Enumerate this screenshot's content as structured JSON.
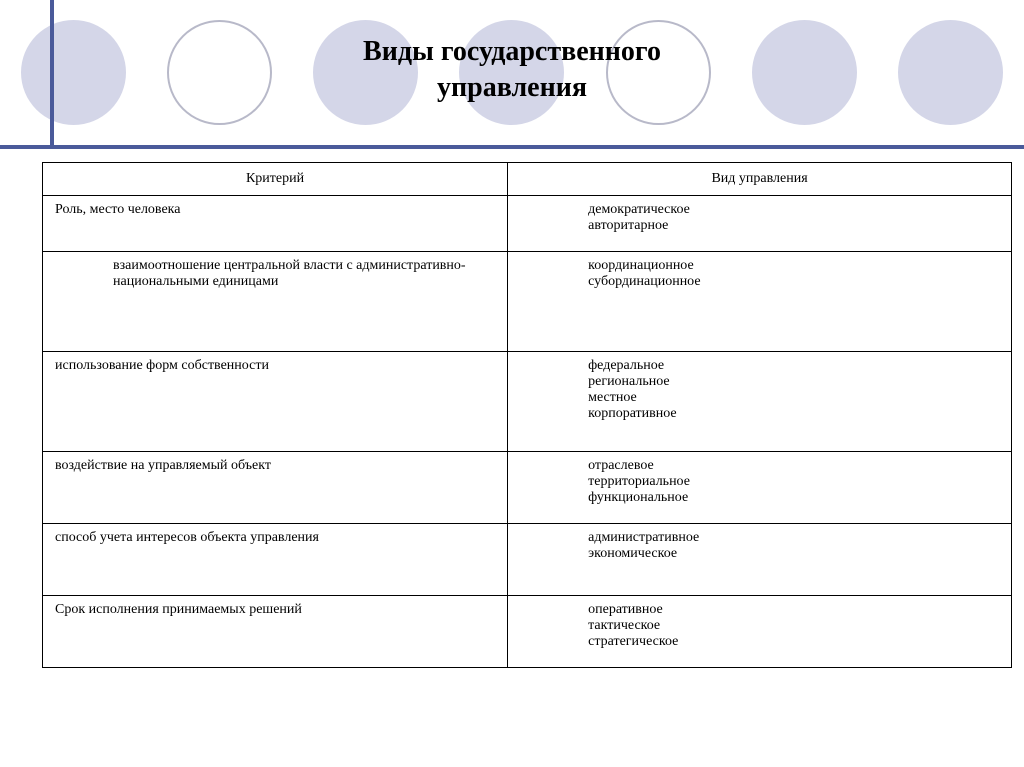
{
  "title_line1": "Виды государственного",
  "title_line2": "управления",
  "columns": {
    "col1": "Критерий",
    "col2": "Вид управления"
  },
  "rows": [
    {
      "criterion": "Роль, место человека",
      "types": [
        "демократическое",
        "авторитарное"
      ],
      "indented": false
    },
    {
      "criterion": "взаимоотношение центральной власти с административно-национальными единицами",
      "types": [
        "координационное",
        "субординационное"
      ],
      "indented": true
    },
    {
      "criterion": "использование форм собственности",
      "types": [
        "федеральное",
        "региональное",
        "местное",
        "корпоративное"
      ],
      "indented": false
    },
    {
      "criterion": "воздействие на управляемый объект",
      "types": [
        "отраслевое",
        "территориальное",
        "функциональное"
      ],
      "indented": false
    },
    {
      "criterion": "способ учета интересов объекта управления",
      "types": [
        "административное",
        "экономическое"
      ],
      "indented": false
    },
    {
      "criterion": "Срок исполнения принимаемых решений",
      "types": [
        "оперативное",
        "тактическое",
        "стратегическое"
      ],
      "indented": false
    }
  ],
  "styling": {
    "circle_fill_color": "#d4d6e8",
    "circle_border_color": "#b8b9c9",
    "line_color": "#4a5a9a",
    "background_color": "#ffffff",
    "text_color": "#000000",
    "border_color": "#000000",
    "title_fontsize": 28,
    "cell_fontsize": 14,
    "font_family": "Times New Roman"
  },
  "circles": [
    {
      "type": "filled"
    },
    {
      "type": "outlined"
    },
    {
      "type": "filled"
    },
    {
      "type": "filled"
    },
    {
      "type": "outlined"
    },
    {
      "type": "filled"
    },
    {
      "type": "filled"
    }
  ]
}
